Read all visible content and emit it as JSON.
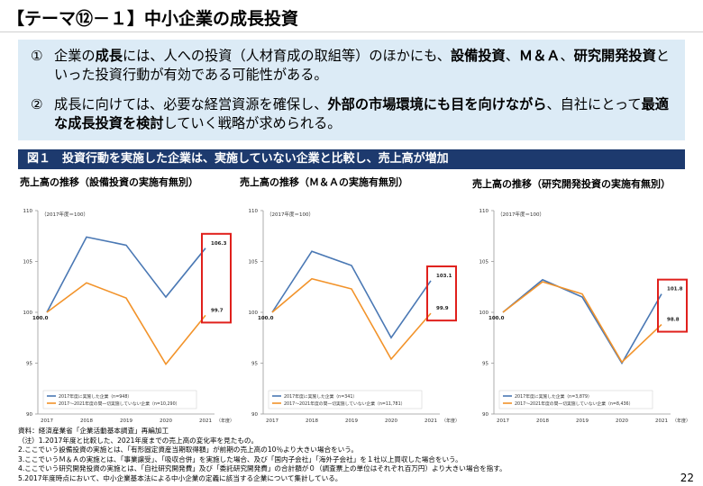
{
  "header": {
    "title": "【テーマ⑫－１】中小企業の成長投資"
  },
  "summary": {
    "points": [
      {
        "num": "①",
        "segments": [
          {
            "t": "企業の",
            "b": false
          },
          {
            "t": "成長",
            "b": true
          },
          {
            "t": "には、人への投資（人材育成の取組等）のほかにも、",
            "b": false
          },
          {
            "t": "設備投資",
            "b": true
          },
          {
            "t": "、",
            "b": false
          },
          {
            "t": "Ｍ＆Ａ",
            "b": true
          },
          {
            "t": "、",
            "b": false
          },
          {
            "t": "研究開発投資",
            "b": true
          },
          {
            "t": "といった投資行動が有効である可能性がある。",
            "b": false
          }
        ]
      },
      {
        "num": "②",
        "segments": [
          {
            "t": "成長に向けては、必要な経営資源を確保し、",
            "b": false
          },
          {
            "t": "外部の市場環境にも目を向けながら",
            "b": true
          },
          {
            "t": "、自社にとって",
            "b": false
          },
          {
            "t": "最適な成長投資を検討",
            "b": true
          },
          {
            "t": "していく戦略が求められる。",
            "b": false
          }
        ]
      }
    ]
  },
  "figure": {
    "title": "図１　投資行動を実施した企業は、実施していない企業と比較し、売上高が増加"
  },
  "colors": {
    "implemented": "#4a78b4",
    "not_implemented": "#f2932a",
    "highlight": "#e0201c",
    "header_bg": "#1d3a6e",
    "summary_bg": "#dcebf6"
  },
  "chart_data": [
    {
      "type": "line",
      "title": "売上高の推移（設備投資の実施有無別）",
      "index_label": "（2017年度＝100）",
      "x_unit": "（年度）",
      "x": [
        "2017",
        "2018",
        "2019",
        "2020",
        "2021"
      ],
      "yticks": [
        90,
        95,
        100,
        105,
        110
      ],
      "ylim": [
        90,
        110
      ],
      "series": [
        {
          "name": "2017年度に実施した企業（n=948）",
          "values": [
            100.0,
            107.4,
            106.6,
            101.5,
            106.3
          ]
        },
        {
          "name": "2017～2021年度の間一切実施していない企業（n=10,290）",
          "values": [
            100.0,
            102.9,
            101.4,
            94.9,
            99.7
          ]
        }
      ],
      "end_labels": [
        "106.3",
        "99.7"
      ],
      "start_label": "100.0"
    },
    {
      "type": "line",
      "title": "売上高の推移（Ｍ＆Ａの実施有無別）",
      "index_label": "（2017年度＝100）",
      "x_unit": "（年度）",
      "x": [
        "2017",
        "2018",
        "2019",
        "2020",
        "2021"
      ],
      "yticks": [
        90,
        95,
        100,
        105,
        110
      ],
      "ylim": [
        90,
        110
      ],
      "series": [
        {
          "name": "2017年度に実施した企業（n=341）",
          "values": [
            100.0,
            106.0,
            104.6,
            97.5,
            103.1
          ]
        },
        {
          "name": "2017～2021年度の間一切実施していない企業（n=11,781）",
          "values": [
            100.0,
            103.3,
            102.3,
            95.4,
            99.9
          ]
        }
      ],
      "end_labels": [
        "103.1",
        "99.9"
      ],
      "start_label": "100.0"
    },
    {
      "type": "line",
      "title": "売上高の推移（研究開発投資の実施有無別）",
      "index_label": "（2017年度＝100）",
      "x_unit": "（年度）",
      "x": [
        "2017",
        "2018",
        "2019",
        "2020",
        "2021"
      ],
      "yticks": [
        90,
        95,
        100,
        105,
        110
      ],
      "ylim": [
        90,
        110
      ],
      "series": [
        {
          "name": "2017年度に実施した企業（n=3,879）",
          "values": [
            100.0,
            103.2,
            101.5,
            95.0,
            101.8
          ]
        },
        {
          "name": "2017～2021年度の間一切実施していない企業（n=8,436）",
          "values": [
            100.0,
            103.0,
            101.8,
            95.1,
            98.8
          ]
        }
      ],
      "end_labels": [
        "101.8",
        "98.8"
      ],
      "start_label": "100.0"
    }
  ],
  "notes": [
    "資料：経済産業省「企業活動基本調査」再編加工",
    "（注）1.2017年度と比較した、2021年度までの売上高の変化率を見たもの。",
    "2.ここでいう設備投資の実施とは、「有形固定資産当期取得額」が前期の売上高の10％より大きい場合をいう。",
    "3.ここでいうＭ＆Ａの実施とは、「事業譲受」、「吸収合併」を実施した場合、及び「国内子会社」「海外子会社」を１社以上買収した場合をいう。",
    "4.ここでいう研究開発投資の実施とは、「自社研究開発費」及び「委託研究開発費」の合計額が０（調査票上の単位はそれぞれ百万円）より大きい場合を指す。",
    "5.2017年度時点において、中小企業基本法による中小企業の定義に該当する企業について集計している。"
  ],
  "page": {
    "number": "22"
  }
}
